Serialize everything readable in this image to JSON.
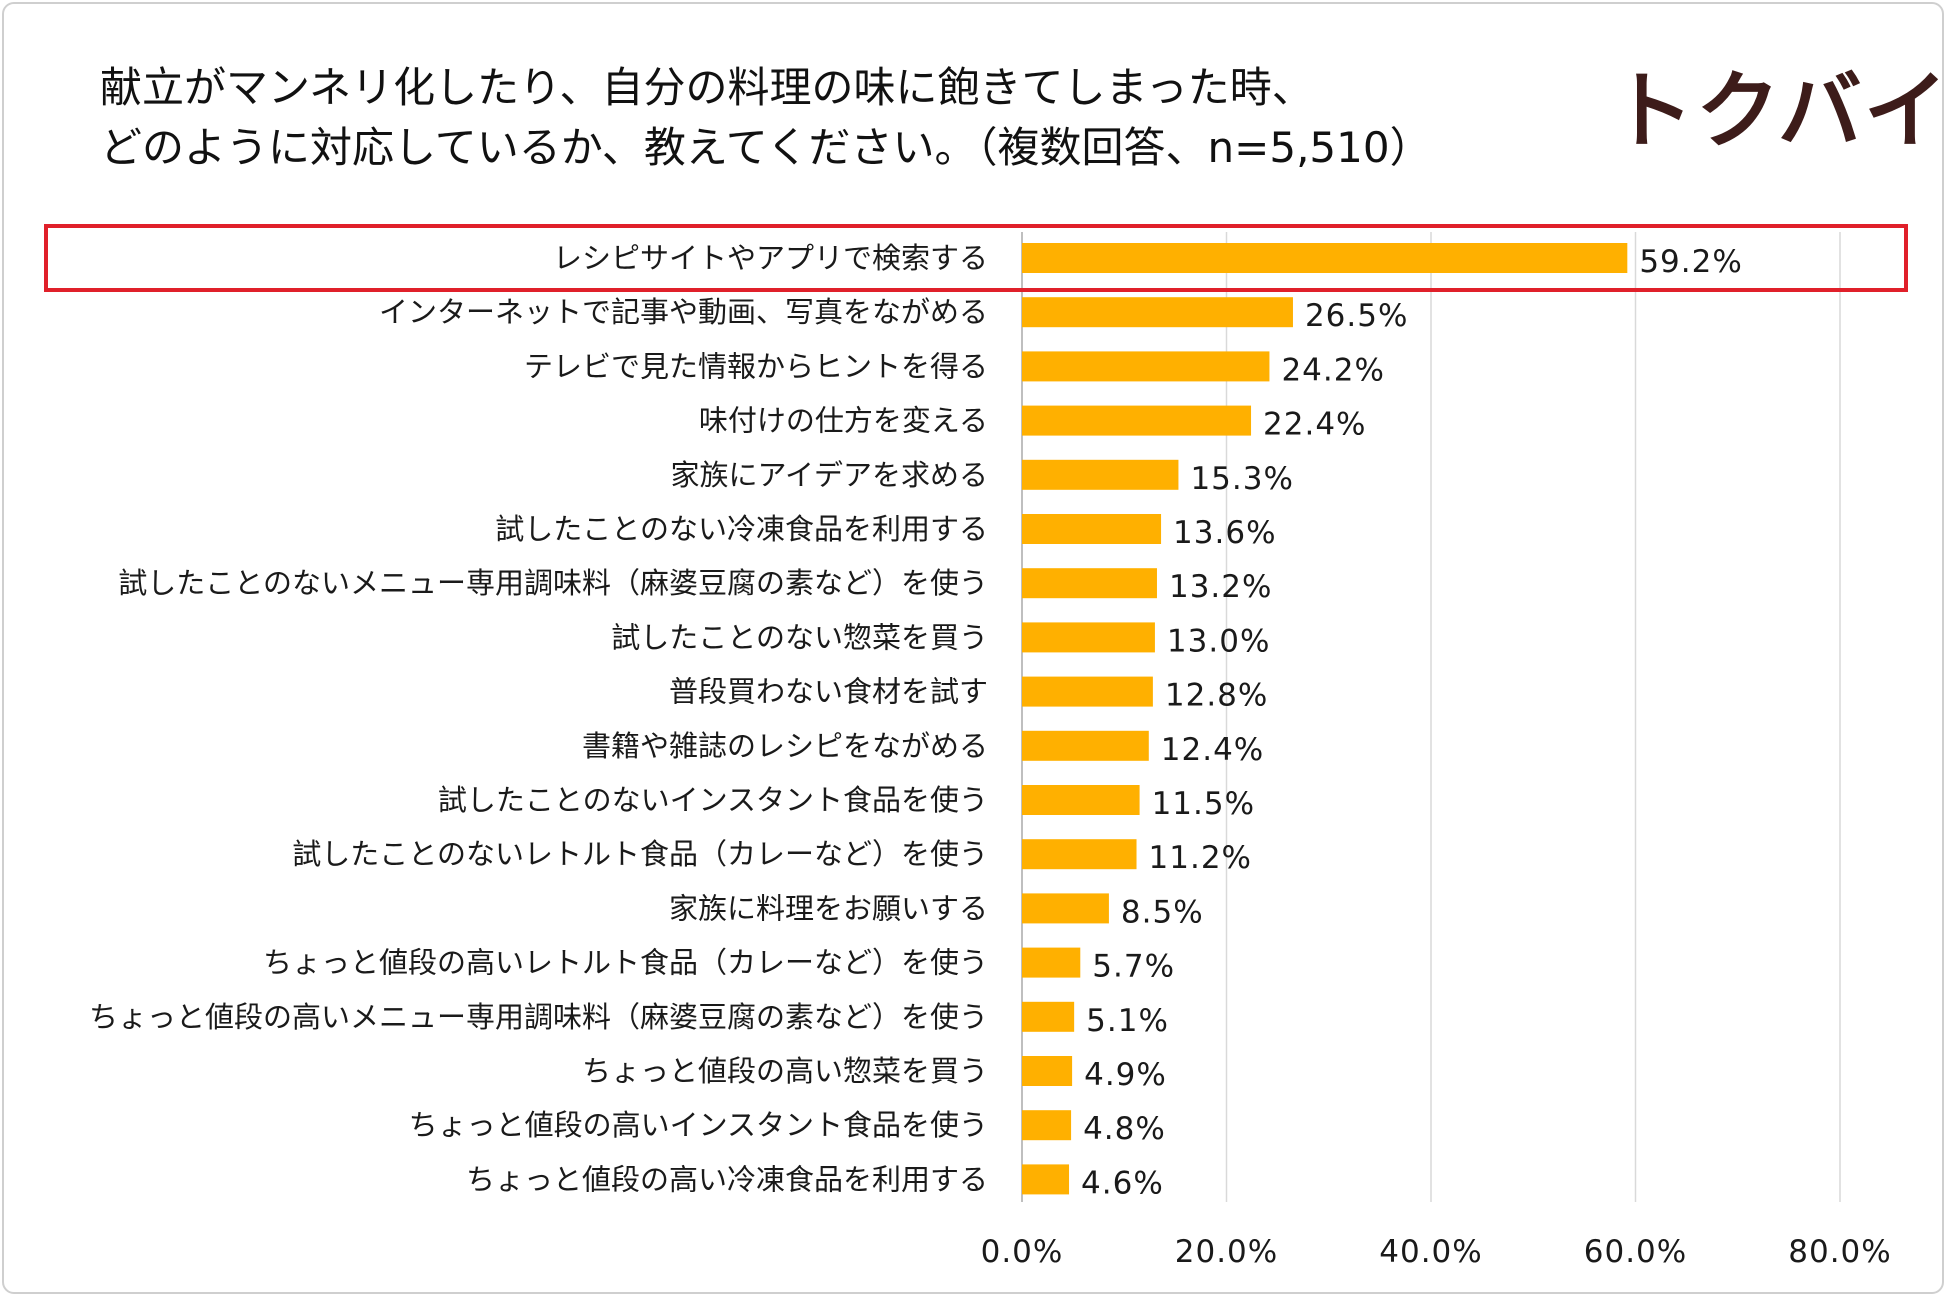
{
  "title": {
    "line1": "献立がマンネリ化したり、自分の料理の味に飽きてしまった時、",
    "line2": "どのように対応しているか、教えてください。（複数回答、n=5,510）"
  },
  "logo": {
    "text": "トクバイ",
    "color": "#3d1c1a"
  },
  "colors": {
    "bar": "#FFB000",
    "highlight": "#E0202A",
    "grid": "#d9d9d9",
    "axis": "#bfbfbf"
  },
  "chart_data": {
    "type": "bar",
    "orientation": "horizontal",
    "title": "献立がマンネリ化したり、自分の料理の味に飽きてしまった時、どのように対応しているか、教えてください。（複数回答、n=5,510）",
    "categories": [
      "レシピサイトやアプリで検索する",
      "インターネットで記事や動画、写真をながめる",
      "テレビで見た情報からヒントを得る",
      "味付けの仕方を変える",
      "家族にアイデアを求める",
      "試したことのない冷凍食品を利用する",
      "試したことのないメニュー専用調味料（麻婆豆腐の素など）を使う",
      "試したことのない惣菜を買う",
      "普段買わない食材を試す",
      "書籍や雑誌のレシピをながめる",
      "試したことのないインスタント食品を使う",
      "試したことのないレトルト食品（カレーなど）を使う",
      "家族に料理をお願いする",
      "ちょっと値段の高いレトルト食品（カレーなど）を使う",
      "ちょっと値段の高いメニュー専用調味料（麻婆豆腐の素など）を使う",
      "ちょっと値段の高い惣菜を買う",
      "ちょっと値段の高いインスタント食品を使う",
      "ちょっと値段の高い冷凍食品を利用する"
    ],
    "values": [
      59.2,
      26.5,
      24.2,
      22.4,
      15.3,
      13.6,
      13.2,
      13.0,
      12.8,
      12.4,
      11.5,
      11.2,
      8.5,
      5.7,
      5.1,
      4.9,
      4.8,
      4.6
    ],
    "value_labels": [
      "59.2%",
      "26.5%",
      "24.2%",
      "22.4%",
      "15.3%",
      "13.6%",
      "13.2%",
      "13.0%",
      "12.8%",
      "12.4%",
      "11.5%",
      "11.2%",
      "8.5%",
      "5.7%",
      "5.1%",
      "4.9%",
      "4.8%",
      "4.6%"
    ],
    "xlim": [
      0,
      80
    ],
    "xticks": [
      0,
      20,
      40,
      60,
      80
    ],
    "xtick_labels": [
      "0.0%",
      "20.0%",
      "40.0%",
      "60.0%",
      "80.0%"
    ],
    "grid": true,
    "highlighted_category": "レシピサイトやアプリで検索する"
  }
}
